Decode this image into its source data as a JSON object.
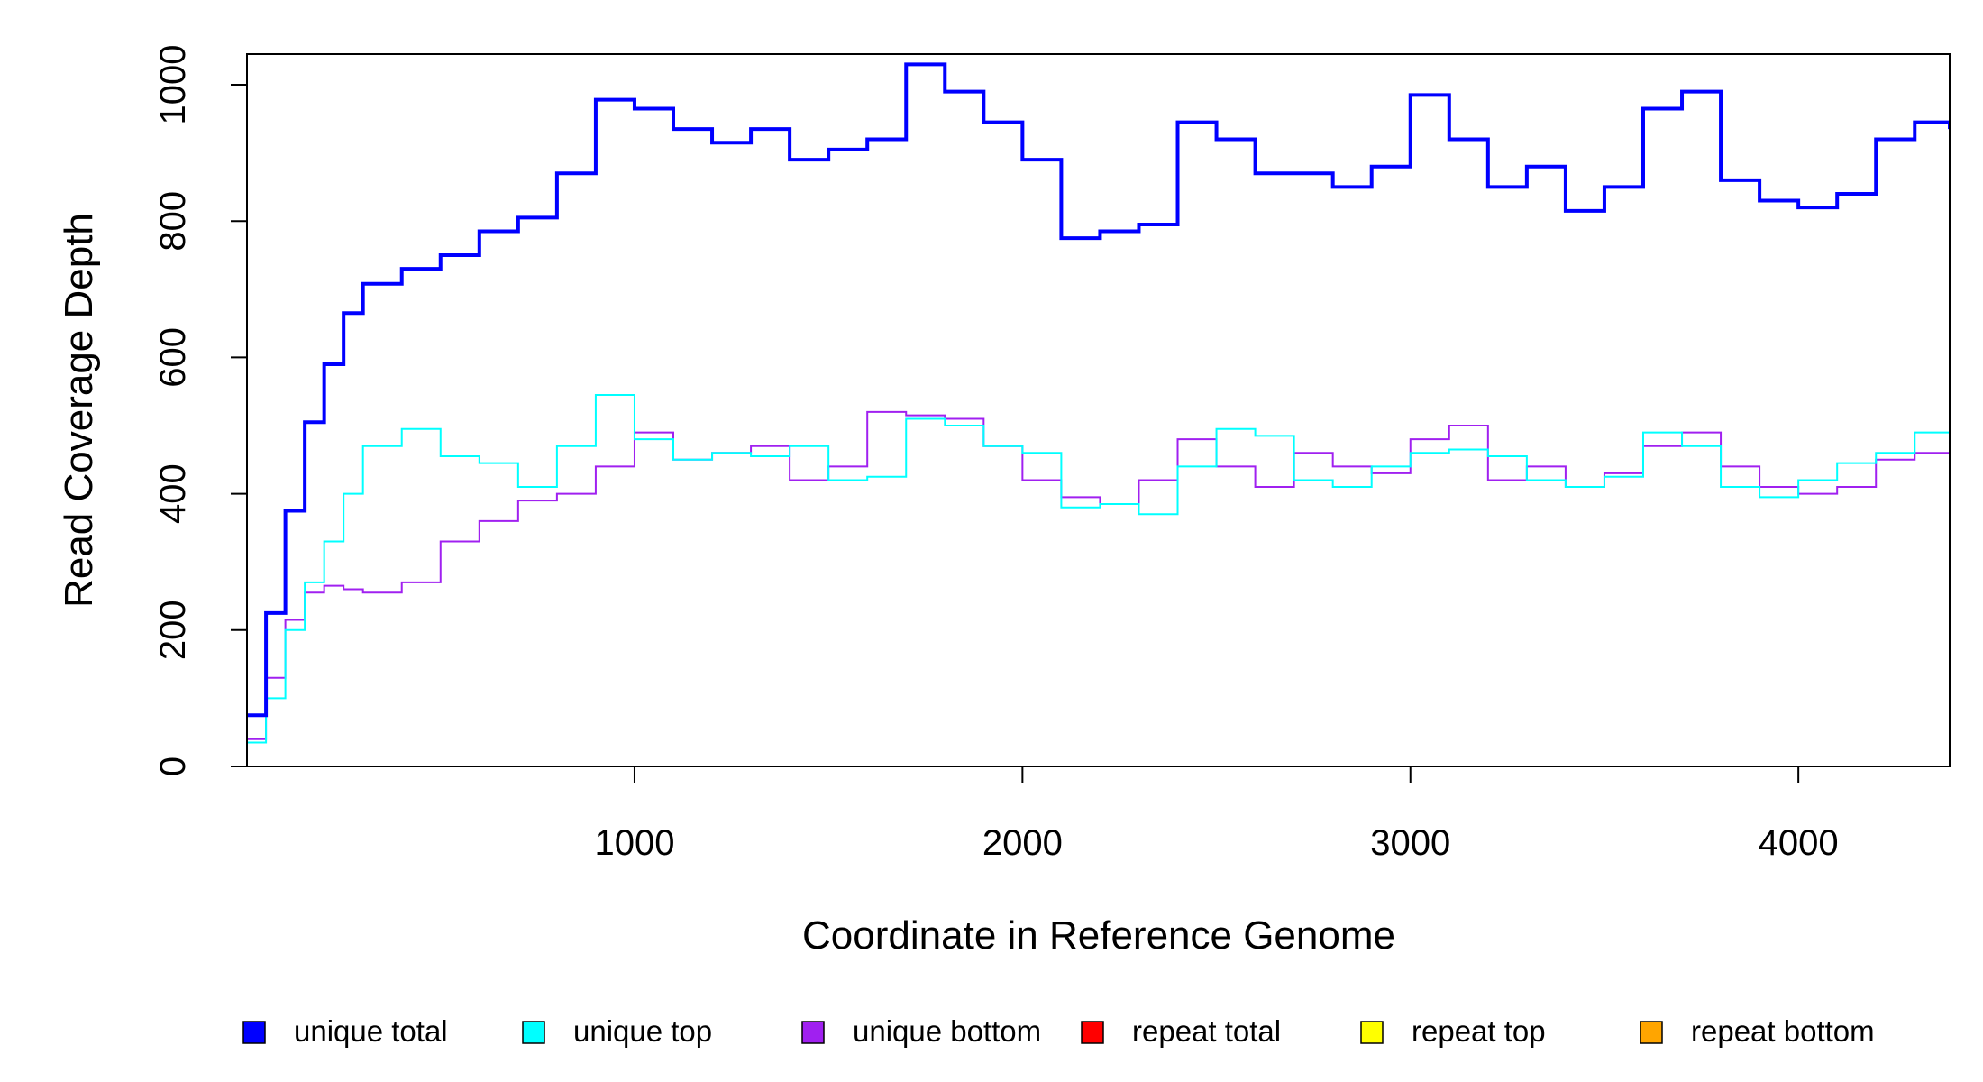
{
  "chart_data": {
    "type": "line",
    "line_style": "step",
    "xlabel": "Coordinate in Reference Genome",
    "ylabel": "Read Coverage Depth",
    "xlim": [
      1,
      4390
    ],
    "ylim": [
      0,
      1045
    ],
    "xticks": [
      1000,
      2000,
      3000,
      4000
    ],
    "yticks": [
      0,
      200,
      400,
      600,
      800,
      1000
    ],
    "legend": "bottom",
    "x": [
      1,
      50,
      100,
      150,
      200,
      250,
      300,
      400,
      500,
      600,
      700,
      800,
      900,
      1000,
      1100,
      1200,
      1300,
      1400,
      1500,
      1600,
      1700,
      1800,
      1900,
      2000,
      2100,
      2200,
      2300,
      2400,
      2500,
      2600,
      2700,
      2800,
      2900,
      3000,
      3100,
      3200,
      3300,
      3400,
      3500,
      3600,
      3700,
      3800,
      3900,
      4000,
      4100,
      4200,
      4300,
      4390
    ],
    "series": [
      {
        "name": "unique total",
        "color": "#0000ff",
        "values": [
          75,
          225,
          375,
          505,
          590,
          665,
          708,
          730,
          750,
          785,
          805,
          870,
          978,
          965,
          935,
          915,
          935,
          890,
          905,
          920,
          1030,
          990,
          945,
          890,
          775,
          785,
          795,
          945,
          920,
          870,
          870,
          850,
          880,
          985,
          920,
          850,
          880,
          815,
          850,
          965,
          990,
          860,
          830,
          820,
          840,
          920,
          945,
          935
        ]
      },
      {
        "name": "unique top",
        "color": "#00ffff",
        "values": [
          35,
          100,
          200,
          270,
          330,
          400,
          470,
          495,
          455,
          445,
          410,
          470,
          545,
          480,
          450,
          460,
          455,
          470,
          420,
          425,
          510,
          500,
          470,
          460,
          380,
          385,
          370,
          440,
          495,
          485,
          420,
          410,
          440,
          460,
          465,
          455,
          420,
          410,
          425,
          490,
          470,
          410,
          395,
          420,
          445,
          460,
          490,
          480
        ]
      },
      {
        "name": "unique bottom",
        "color": "#a020f0",
        "values": [
          40,
          130,
          215,
          255,
          265,
          260,
          255,
          270,
          330,
          360,
          390,
          400,
          440,
          490,
          450,
          460,
          470,
          420,
          440,
          520,
          515,
          510,
          470,
          420,
          395,
          385,
          420,
          480,
          440,
          410,
          460,
          440,
          430,
          480,
          500,
          420,
          440,
          410,
          430,
          470,
          490,
          440,
          410,
          400,
          410,
          450,
          460,
          460
        ]
      },
      {
        "name": "repeat total",
        "color": "#ff0000",
        "values": [
          0,
          0,
          0,
          0,
          0,
          0,
          0,
          0,
          0,
          0,
          0,
          0,
          0,
          0,
          0,
          0,
          0,
          0,
          0,
          0,
          0,
          0,
          0,
          0,
          0,
          0,
          0,
          0,
          0,
          0,
          0,
          0,
          0,
          0,
          0,
          0,
          0,
          0,
          0,
          0,
          0,
          0,
          0,
          0,
          0,
          0,
          0,
          0
        ]
      },
      {
        "name": "repeat top",
        "color": "#ffff00",
        "values": [
          0,
          0,
          0,
          0,
          0,
          0,
          0,
          0,
          0,
          0,
          0,
          0,
          0,
          0,
          0,
          0,
          0,
          0,
          0,
          0,
          0,
          0,
          0,
          0,
          0,
          0,
          0,
          0,
          0,
          0,
          0,
          0,
          0,
          0,
          0,
          0,
          0,
          0,
          0,
          0,
          0,
          0,
          0,
          0,
          0,
          0,
          0,
          0
        ]
      },
      {
        "name": "repeat bottom",
        "color": "#ffa500",
        "values": [
          0,
          0,
          0,
          0,
          0,
          0,
          0,
          0,
          0,
          0,
          0,
          0,
          0,
          0,
          0,
          0,
          0,
          0,
          0,
          0,
          0,
          0,
          0,
          0,
          0,
          0,
          0,
          0,
          0,
          0,
          0,
          0,
          0,
          0,
          0,
          0,
          0,
          0,
          0,
          0,
          0,
          0,
          0,
          0,
          0,
          0,
          0,
          0
        ]
      }
    ]
  }
}
